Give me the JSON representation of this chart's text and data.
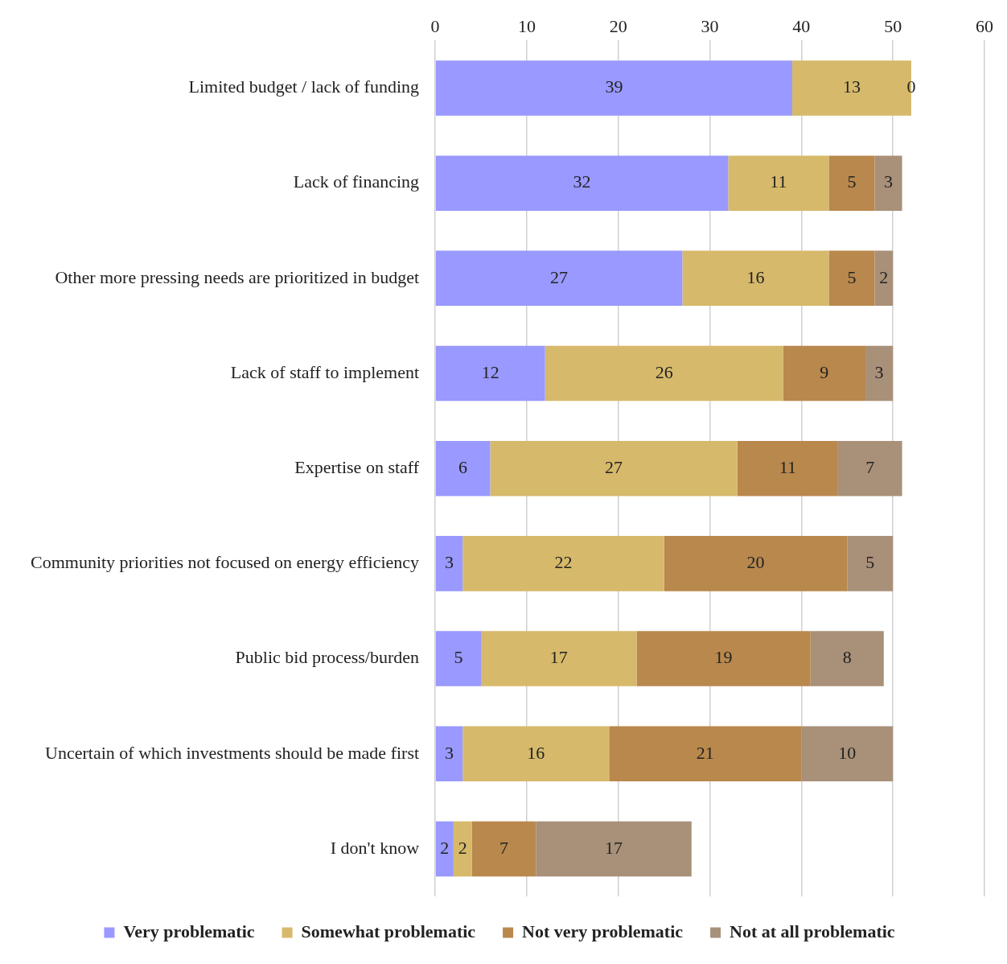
{
  "chart_data": {
    "type": "bar",
    "orientation": "horizontal",
    "stacked": true,
    "categories": [
      "Limited budget / lack of funding",
      "Lack of financing",
      "Other more pressing needs are prioritized in budget",
      "Lack of staff to implement",
      "Expertise on staff",
      "Community priorities not focused on energy efficiency",
      "Public bid process/burden",
      "Uncertain of which investments should be made first",
      "I don't know"
    ],
    "series": [
      {
        "name": "Very problematic",
        "color": "#9999ff",
        "values": [
          39,
          32,
          27,
          12,
          6,
          3,
          5,
          3,
          2
        ]
      },
      {
        "name": "Somewhat problematic",
        "color": "#d6b96a",
        "values": [
          13,
          11,
          16,
          26,
          27,
          22,
          17,
          16,
          2
        ]
      },
      {
        "name": "Not very problematic",
        "color": "#b9884d",
        "values": [
          0,
          5,
          5,
          9,
          11,
          20,
          19,
          21,
          7
        ]
      },
      {
        "name": "Not at all problematic",
        "color": "#a99079",
        "values": [
          null,
          3,
          2,
          3,
          7,
          5,
          8,
          10,
          17
        ]
      }
    ],
    "xlim": [
      0,
      60
    ],
    "xticks": [
      0,
      10,
      20,
      30,
      40,
      50,
      60
    ],
    "grid": "x",
    "legend": "bottom",
    "data_labels": true
  }
}
